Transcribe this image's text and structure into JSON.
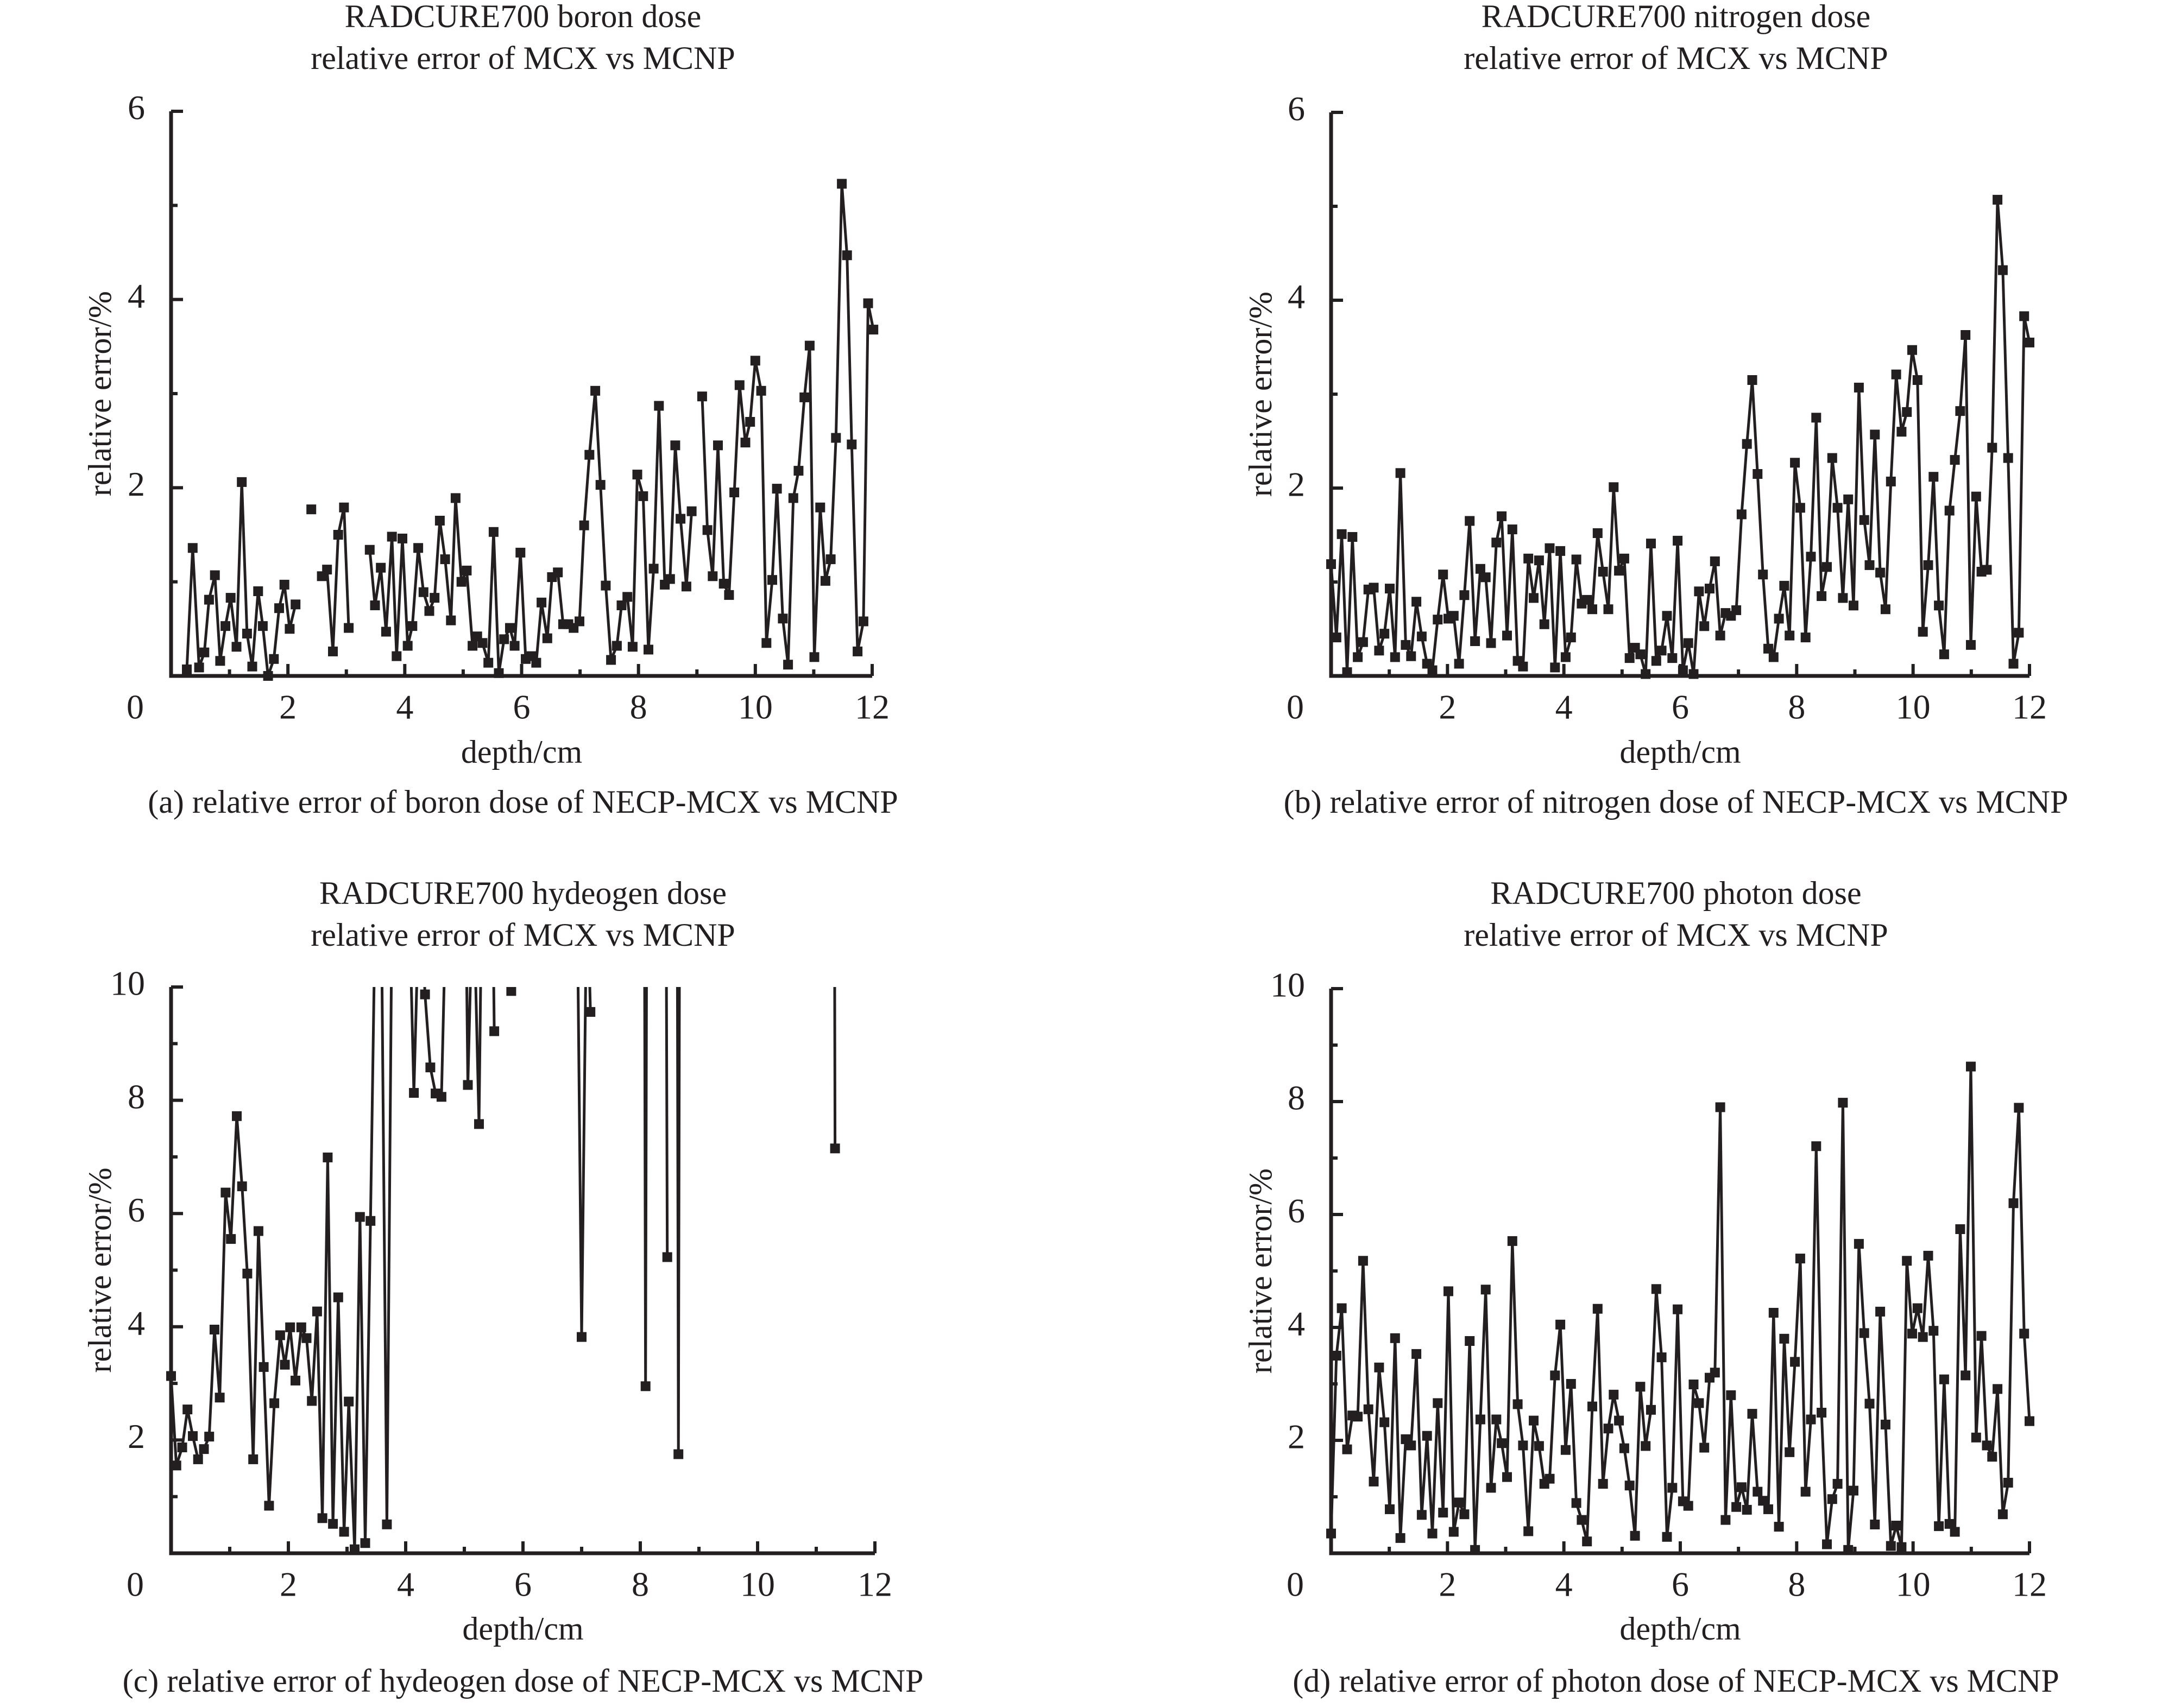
{
  "colors": {
    "ink": "#231f20",
    "background": "#ffffff"
  },
  "chart_data": [
    {
      "id": "a",
      "type": "line",
      "title": [
        "RADCURE700 boron dose",
        "relative error of MCX vs MCNP"
      ],
      "xlabel": "depth/cm",
      "ylabel": "relative error/%",
      "caption": "(a) relative error of boron dose of NECP-MCX vs MCNP",
      "xlim": [
        0,
        12
      ],
      "ylim": [
        0,
        6
      ],
      "xticks": [
        0,
        2,
        4,
        6,
        8,
        10,
        12
      ],
      "xtick_labels": [
        "0",
        "2",
        "4",
        "6",
        "8",
        "10",
        "12"
      ],
      "yticks": [
        2,
        4,
        6
      ],
      "ytick_labels": [
        "2",
        "4",
        "6"
      ],
      "minor_step_x": 1,
      "minor_step_y": 1,
      "grid": false,
      "marker": "square",
      "segments": [
        {
          "x": [
            0.27,
            0.37,
            0.48,
            0.57,
            0.65,
            0.75,
            0.84,
            0.93,
            1.02,
            1.12,
            1.21,
            1.3,
            1.39,
            1.49,
            1.57,
            1.66,
            1.76,
            1.85,
            1.94,
            2.03,
            2.13
          ],
          "y": [
            0.07,
            1.36,
            0.09,
            0.25,
            0.81,
            1.07,
            0.16,
            0.53,
            0.83,
            0.31,
            2.06,
            0.45,
            0.1,
            0.9,
            0.53,
            0.0,
            0.18,
            0.72,
            0.97,
            0.5,
            0.76
          ]
        },
        {
          "x": [
            2.4
          ],
          "y": [
            1.77
          ]
        },
        {
          "x": [
            2.58,
            2.67,
            2.77,
            2.86,
            2.96,
            3.04
          ],
          "y": [
            1.06,
            1.13,
            0.26,
            1.5,
            1.79,
            0.51
          ]
        },
        {
          "x": [
            3.4,
            3.49,
            3.59,
            3.68,
            3.78,
            3.86,
            3.96,
            4.05,
            4.13,
            4.23,
            4.32,
            4.42,
            4.51,
            4.6,
            4.69,
            4.79,
            4.87,
            4.97,
            5.06,
            5.16,
            5.24,
            5.33,
            5.43,
            5.52,
            5.61,
            5.7,
            5.8,
            5.88,
            5.98,
            6.07,
            6.17,
            6.25,
            6.34,
            6.44,
            6.52,
            6.62,
            6.71,
            6.8,
            6.89,
            6.99,
            7.07,
            7.16,
            7.26,
            7.35,
            7.44,
            7.53,
            7.63,
            7.71,
            7.81,
            7.9,
            7.98,
            8.08,
            8.17,
            8.26,
            8.35,
            8.45,
            8.54,
            8.63,
            8.72,
            8.82,
            8.91
          ],
          "y": [
            1.34,
            0.75,
            1.15,
            0.47,
            1.48,
            0.21,
            1.46,
            0.32,
            0.53,
            1.36,
            0.89,
            0.69,
            0.83,
            1.65,
            1.24,
            0.59,
            1.89,
            1.0,
            1.12,
            0.32,
            0.42,
            0.35,
            0.14,
            1.53,
            0.03,
            0.39,
            0.51,
            0.32,
            1.31,
            0.18,
            0.21,
            0.14,
            0.78,
            0.4,
            1.05,
            1.1,
            0.55,
            0.55,
            0.51,
            0.58,
            1.6,
            2.35,
            3.03,
            2.03,
            0.96,
            0.17,
            0.32,
            0.75,
            0.84,
            0.31,
            2.14,
            1.91,
            0.28,
            1.14,
            2.87,
            0.97,
            1.03,
            2.45,
            1.67,
            0.95,
            1.75
          ]
        },
        {
          "x": [
            9.09,
            9.18,
            9.27,
            9.36,
            9.46,
            9.55,
            9.64,
            9.73,
            9.83,
            9.91,
            10.0,
            10.1,
            10.19,
            10.29,
            10.37,
            10.47,
            10.56,
            10.65,
            10.74,
            10.84,
            10.93,
            11.01,
            11.11,
            11.2,
            11.29,
            11.38,
            11.48,
            11.57,
            11.65,
            11.75,
            11.85,
            11.93,
            12.02
          ],
          "y": [
            2.97,
            1.55,
            1.06,
            2.45,
            0.98,
            0.86,
            1.95,
            3.09,
            2.48,
            2.7,
            3.35,
            3.03,
            0.35,
            1.02,
            1.99,
            0.61,
            0.12,
            1.89,
            2.18,
            2.96,
            3.51,
            0.2,
            1.79,
            1.01,
            1.24,
            2.53,
            5.23,
            4.47,
            2.46,
            0.26,
            0.58,
            3.96,
            3.68
          ]
        }
      ]
    },
    {
      "id": "b",
      "type": "line",
      "title": [
        "RADCURE700 nitrogen dose",
        "relative error of MCX vs MCNP"
      ],
      "xlabel": "depth/cm",
      "ylabel": "relative error/%",
      "caption": "(b) relative error of nitrogen dose of NECP-MCX vs MCNP",
      "xlim": [
        0,
        12
      ],
      "ylim": [
        0,
        6
      ],
      "xticks": [
        0,
        2,
        4,
        6,
        8,
        10,
        12
      ],
      "xtick_labels": [
        "0",
        "2",
        "4",
        "6",
        "8",
        "10",
        "12"
      ],
      "yticks": [
        2,
        4,
        6
      ],
      "ytick_labels": [
        "2",
        "4",
        "6"
      ],
      "minor_step_x": 1,
      "minor_step_y": 1,
      "grid": false,
      "marker": "square",
      "x_range_even": [
        0,
        12
      ],
      "y": [
        1.19,
        0.41,
        1.51,
        0.04,
        1.48,
        0.2,
        0.36,
        0.92,
        0.94,
        0.27,
        0.45,
        0.93,
        0.2,
        2.16,
        0.33,
        0.21,
        0.79,
        0.42,
        0.13,
        0.06,
        0.6,
        1.08,
        0.61,
        0.64,
        0.13,
        0.86,
        1.65,
        0.37,
        1.14,
        1.05,
        0.35,
        1.42,
        1.7,
        0.43,
        1.56,
        0.16,
        0.1,
        1.25,
        0.83,
        1.23,
        0.55,
        1.36,
        0.09,
        1.33,
        0.2,
        0.41,
        1.24,
        0.77,
        0.81,
        0.71,
        1.52,
        1.11,
        0.71,
        2.01,
        1.12,
        1.25,
        0.19,
        0.3,
        0.23,
        0.02,
        1.41,
        0.16,
        0.27,
        0.64,
        0.19,
        1.44,
        0.06,
        0.35,
        0.02,
        0.9,
        0.53,
        0.93,
        1.22,
        0.43,
        0.67,
        0.64,
        0.7,
        1.72,
        2.47,
        3.15,
        2.15,
        1.08,
        0.29,
        0.2,
        0.61,
        0.96,
        0.43,
        2.27,
        1.79,
        0.41,
        1.27,
        2.75,
        0.85,
        1.16,
        2.32,
        1.79,
        0.83,
        1.88,
        0.75,
        3.07,
        1.66,
        1.18,
        2.57,
        1.1,
        0.71,
        2.07,
        3.21,
        2.6,
        2.81,
        3.47,
        3.15,
        0.47,
        1.18,
        2.12,
        0.75,
        0.23,
        1.76,
        2.3,
        2.82,
        3.63,
        0.33,
        1.91,
        1.11,
        1.13,
        2.43,
        5.07,
        4.32,
        2.32,
        0.13,
        0.46,
        3.83,
        3.55
      ]
    },
    {
      "id": "c",
      "type": "line",
      "title": [
        "RADCURE700 hydeogen dose",
        "relative error of MCX vs MCNP"
      ],
      "xlabel": "depth/cm",
      "ylabel": "relative error/%",
      "caption": "(c) relative error of hydeogen dose of NECP-MCX vs MCNP",
      "xlim": [
        0,
        12
      ],
      "ylim": [
        0,
        10
      ],
      "xticks": [
        0,
        2,
        4,
        6,
        8,
        10,
        12
      ],
      "xtick_labels": [
        "0",
        "2",
        "4",
        "6",
        "8",
        "10",
        "12"
      ],
      "yticks": [
        2,
        4,
        6,
        8,
        10
      ],
      "ytick_labels": [
        "2",
        "4",
        "6",
        "8",
        "10"
      ],
      "minor_step_x": 1,
      "minor_step_y": 1,
      "grid": false,
      "marker": "square",
      "note_off_scale": "values above 10 are off-scale (clipped at top of axis); recorded as 12",
      "segments": [
        {
          "x": [
            0.0,
            0.09,
            0.19,
            0.28,
            0.37,
            0.46,
            0.56,
            0.65,
            0.74,
            0.83,
            0.93,
            1.02,
            1.12,
            1.21,
            1.3,
            1.4,
            1.49,
            1.58,
            1.67,
            1.76,
            1.86,
            1.94,
            2.03,
            2.12,
            2.22,
            2.31,
            2.4,
            2.49,
            2.58,
            2.67,
            2.76,
            2.85,
            2.95,
            3.03,
            3.13,
            3.22,
            3.31,
            3.4,
            3.49,
            3.58,
            3.68,
            3.77
          ],
          "y": [
            3.13,
            1.55,
            1.87,
            2.54,
            2.07,
            1.66,
            1.84,
            2.06,
            3.95,
            2.75,
            6.37,
            5.55,
            7.72,
            6.48,
            4.94,
            1.66,
            5.69,
            3.29,
            0.84,
            2.65,
            3.85,
            3.33,
            3.99,
            3.05,
            3.99,
            3.8,
            2.69,
            4.27,
            0.62,
            6.99,
            0.52,
            4.52,
            0.38,
            2.68,
            0.07,
            5.94,
            0.18,
            5.87,
            12,
            12,
            0.51,
            12
          ]
        },
        {
          "x": [
            4.05,
            4.14,
            4.24,
            4.33,
            4.42,
            4.51,
            4.61,
            4.7
          ],
          "y": [
            12,
            8.13,
            12,
            9.87,
            8.58,
            8.12,
            8.06,
            12
          ]
        },
        {
          "x": [
            5.02,
            5.06,
            5.15,
            5.25,
            5.3
          ],
          "y": [
            12,
            8.27,
            12,
            7.58,
            12
          ]
        },
        {
          "x": [
            5.48,
            5.51
          ],
          "y": [
            12,
            9.22
          ]
        },
        {
          "x": [
            5.78,
            5.8
          ],
          "y": [
            12,
            9.93
          ]
        },
        {
          "x": [
            6.92,
            7.0,
            7.09,
            7.15
          ],
          "y": [
            12,
            3.82,
            12,
            9.56
          ]
        },
        {
          "x": [
            8.07,
            8.09,
            8.11
          ],
          "y": [
            12,
            2.95,
            12
          ]
        },
        {
          "x": [
            8.44,
            8.46
          ],
          "y": [
            12,
            5.23
          ]
        },
        {
          "x": [
            8.63,
            8.65,
            8.67
          ],
          "y": [
            12,
            1.75,
            12
          ]
        },
        {
          "x": [
            11.31,
            11.32
          ],
          "y": [
            12,
            7.15
          ]
        }
      ]
    },
    {
      "id": "d",
      "type": "line",
      "title": [
        "RADCURE700 photon dose",
        "relative error of MCX vs MCNP"
      ],
      "xlabel": "depth/cm",
      "ylabel": "relative error/%",
      "caption": "(d) relative error of photon dose of NECP-MCX vs MCNP",
      "xlim": [
        0,
        12
      ],
      "ylim": [
        0,
        10
      ],
      "xticks": [
        0,
        2,
        4,
        6,
        8,
        10,
        12
      ],
      "xtick_labels": [
        "0",
        "2",
        "4",
        "6",
        "8",
        "10",
        "12"
      ],
      "yticks": [
        2,
        4,
        6,
        8,
        10
      ],
      "ytick_labels": [
        "2",
        "4",
        "6",
        "8",
        "10"
      ],
      "minor_step_x": 1,
      "minor_step_y": 1,
      "grid": false,
      "marker": "square",
      "x_range_even": [
        0,
        12
      ],
      "y": [
        0.35,
        3.5,
        4.34,
        1.84,
        2.44,
        2.42,
        5.18,
        2.55,
        1.27,
        3.29,
        2.32,
        0.78,
        3.81,
        0.27,
        2.02,
        1.91,
        3.53,
        0.68,
        2.08,
        0.35,
        2.66,
        0.72,
        4.64,
        0.38,
        0.9,
        0.69,
        3.76,
        0.06,
        2.37,
        4.67,
        1.16,
        2.37,
        1.95,
        1.35,
        5.53,
        2.64,
        1.91,
        0.39,
        2.35,
        1.9,
        1.23,
        1.32,
        3.15,
        4.05,
        1.83,
        3.0,
        0.89,
        0.59,
        0.21,
        2.6,
        4.33,
        1.23,
        2.21,
        2.81,
        2.35,
        1.86,
        1.2,
        0.31,
        2.95,
        1.9,
        2.54,
        4.68,
        3.47,
        0.29,
        1.16,
        4.32,
        0.92,
        0.84,
        2.99,
        2.66,
        1.87,
        3.11,
        3.2,
        7.9,
        0.59,
        2.8,
        0.82,
        1.17,
        0.77,
        2.47,
        1.09,
        0.93,
        0.78,
        4.26,
        0.47,
        3.8,
        1.79,
        3.39,
        5.22,
        1.09,
        2.37,
        7.21,
        2.49,
        0.16,
        0.96,
        1.23,
        7.98,
        0.06,
        1.11,
        5.48,
        3.9,
        2.65,
        0.51,
        4.28,
        2.28,
        0.13,
        0.49,
        0.11,
        5.18,
        3.89,
        4.34,
        3.83,
        5.27,
        3.94,
        0.48,
        3.08,
        0.52,
        0.38,
        5.74,
        3.15,
        8.62,
        2.05,
        3.85,
        1.91,
        1.71,
        2.91,
        0.69,
        1.25,
        6.2,
        7.89,
        3.89,
        2.34
      ]
    }
  ]
}
